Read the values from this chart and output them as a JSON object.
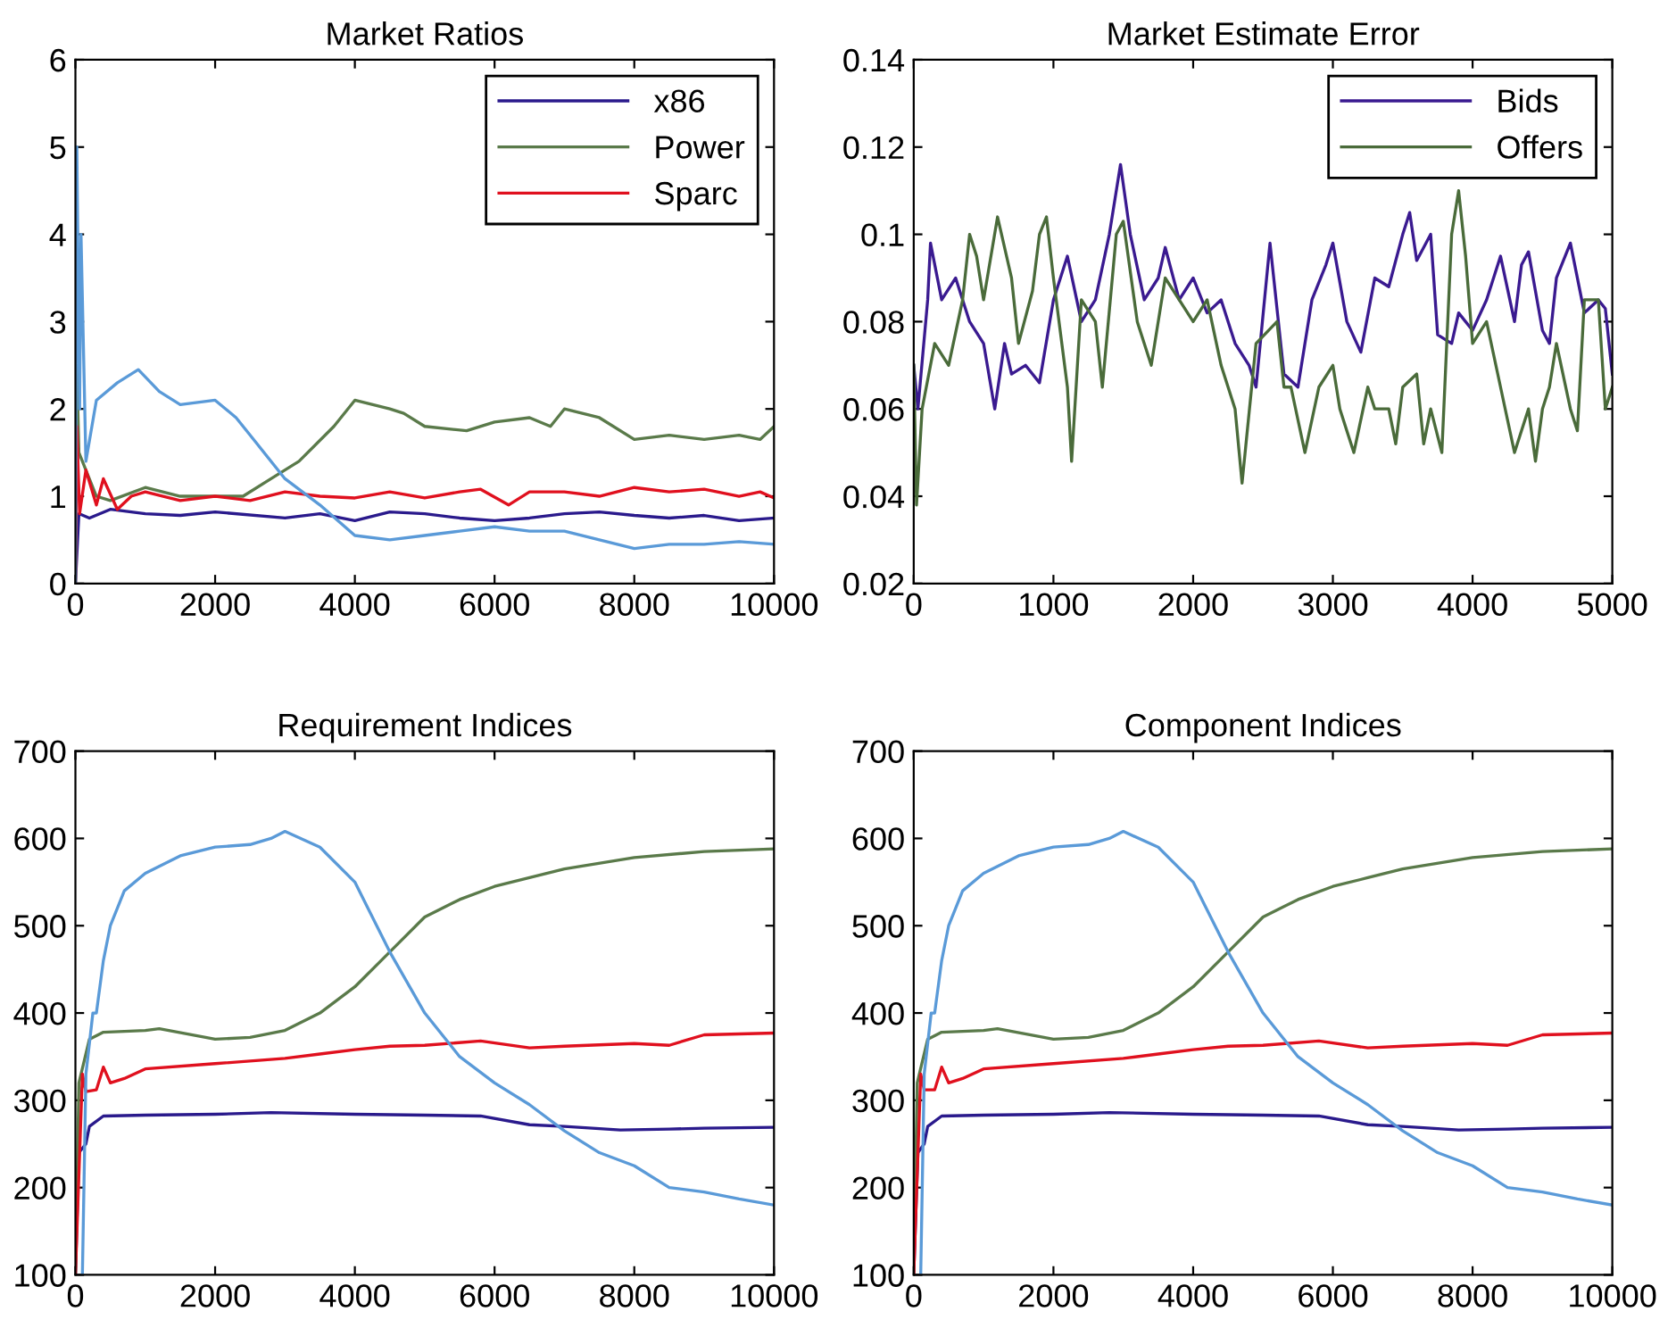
{
  "chart_data": [
    {
      "type": "line",
      "title": "Market Ratios",
      "xlim": [
        0,
        10000
      ],
      "ylim": [
        0,
        6
      ],
      "xticks": [
        0,
        2000,
        4000,
        6000,
        8000,
        10000
      ],
      "yticks": [
        0,
        1,
        2,
        3,
        4,
        5,
        6
      ],
      "grid": false,
      "legend": "top right",
      "marker": "none",
      "line_style": "solid",
      "series": [
        {
          "name": "x86",
          "color": "#2a1a8c",
          "x": [
            0,
            50,
            200,
            500,
            1000,
            1500,
            2000,
            3000,
            3500,
            4000,
            4500,
            5000,
            5500,
            6000,
            6500,
            7000,
            7500,
            8000,
            8500,
            9000,
            9500,
            10000
          ],
          "values": [
            0,
            0.8,
            0.75,
            0.85,
            0.8,
            0.78,
            0.82,
            0.75,
            0.8,
            0.72,
            0.82,
            0.8,
            0.75,
            0.72,
            0.75,
            0.8,
            0.82,
            0.78,
            0.75,
            0.78,
            0.72,
            0.75
          ]
        },
        {
          "name": "Power",
          "color": "#5a7a4a",
          "x": [
            0,
            20,
            50,
            300,
            500,
            1000,
            1500,
            2000,
            2400,
            2800,
            3200,
            3700,
            4000,
            4500,
            4700,
            5000,
            5600,
            6000,
            6500,
            6800,
            7000,
            7500,
            8000,
            8500,
            9000,
            9500,
            9800,
            10000
          ],
          "values": [
            0,
            2.5,
            1.5,
            1.0,
            0.95,
            1.1,
            1.0,
            1.0,
            1.0,
            1.2,
            1.4,
            1.8,
            2.1,
            2.0,
            1.95,
            1.8,
            1.75,
            1.85,
            1.9,
            1.8,
            2.0,
            1.9,
            1.65,
            1.7,
            1.65,
            1.7,
            1.65,
            1.8
          ]
        },
        {
          "name": "Sparc",
          "color": "#e0101e",
          "x": [
            0,
            20,
            60,
            150,
            300,
            400,
            600,
            800,
            1000,
            1500,
            2000,
            2500,
            3000,
            3500,
            4000,
            4500,
            5000,
            5500,
            5800,
            6200,
            6500,
            7000,
            7500,
            8000,
            8500,
            9000,
            9500,
            9800,
            10000
          ],
          "values": [
            0,
            1.8,
            0.8,
            1.3,
            0.9,
            1.2,
            0.85,
            1.0,
            1.05,
            0.95,
            1.0,
            0.95,
            1.05,
            1.0,
            0.98,
            1.05,
            0.98,
            1.05,
            1.08,
            0.9,
            1.05,
            1.05,
            1.0,
            1.1,
            1.05,
            1.08,
            1.0,
            1.05,
            0.98
          ]
        },
        {
          "color": "#5a9ad8",
          "x": [
            0,
            20,
            60,
            80,
            150,
            300,
            600,
            900,
            1200,
            1500,
            2000,
            2300,
            2600,
            3000,
            3500,
            4000,
            4500,
            5000,
            5500,
            6000,
            6500,
            7000,
            7500,
            8000,
            8500,
            9000,
            9500,
            10000
          ],
          "values": [
            0,
            5,
            2,
            4,
            1.4,
            2.1,
            2.3,
            2.45,
            2.2,
            2.05,
            2.1,
            1.9,
            1.6,
            1.2,
            0.9,
            0.55,
            0.5,
            0.55,
            0.6,
            0.65,
            0.6,
            0.6,
            0.5,
            0.4,
            0.45,
            0.45,
            0.48,
            0.45
          ]
        }
      ]
    },
    {
      "type": "line",
      "title": "Market Estimate Error",
      "xlim": [
        0,
        5000
      ],
      "ylim": [
        0.02,
        0.14
      ],
      "xticks": [
        0,
        1000,
        2000,
        3000,
        4000,
        5000
      ],
      "yticks": [
        0.02,
        0.04,
        0.06,
        0.08,
        0.1,
        0.12,
        0.14
      ],
      "grid": false,
      "legend": "top right",
      "marker": "none",
      "line_style": "solid",
      "series": [
        {
          "name": "Bids",
          "color": "#3a1a90",
          "x": [
            0,
            30,
            100,
            120,
            200,
            300,
            400,
            500,
            580,
            650,
            700,
            800,
            900,
            1000,
            1100,
            1200,
            1300,
            1400,
            1480,
            1550,
            1650,
            1750,
            1800,
            1900,
            2000,
            2100,
            2200,
            2300,
            2400,
            2450,
            2550,
            2650,
            2750,
            2850,
            2950,
            3000,
            3100,
            3200,
            3300,
            3400,
            3500,
            3550,
            3600,
            3700,
            3750,
            3850,
            3900,
            4000,
            4100,
            4200,
            4300,
            4350,
            4400,
            4500,
            4550,
            4600,
            4700,
            4800,
            4900,
            4950,
            5000
          ],
          "values": [
            0.07,
            0.06,
            0.085,
            0.098,
            0.085,
            0.09,
            0.08,
            0.075,
            0.06,
            0.075,
            0.068,
            0.07,
            0.066,
            0.085,
            0.095,
            0.08,
            0.085,
            0.1,
            0.116,
            0.1,
            0.085,
            0.09,
            0.097,
            0.085,
            0.09,
            0.082,
            0.085,
            0.075,
            0.07,
            0.065,
            0.098,
            0.068,
            0.065,
            0.085,
            0.093,
            0.098,
            0.08,
            0.073,
            0.09,
            0.088,
            0.1,
            0.105,
            0.094,
            0.1,
            0.077,
            0.075,
            0.082,
            0.078,
            0.085,
            0.095,
            0.08,
            0.093,
            0.096,
            0.078,
            0.075,
            0.09,
            0.098,
            0.082,
            0.085,
            0.083,
            0.068
          ]
        },
        {
          "name": "Offers",
          "color": "#4a6b3a",
          "x": [
            0,
            20,
            60,
            150,
            250,
            350,
            400,
            450,
            500,
            600,
            700,
            750,
            850,
            900,
            950,
            1000,
            1100,
            1130,
            1200,
            1300,
            1350,
            1450,
            1500,
            1600,
            1700,
            1800,
            1900,
            2000,
            2100,
            2200,
            2300,
            2350,
            2450,
            2600,
            2650,
            2700,
            2800,
            2900,
            3000,
            3050,
            3100,
            3150,
            3250,
            3300,
            3400,
            3450,
            3500,
            3600,
            3650,
            3700,
            3780,
            3850,
            3900,
            3950,
            4000,
            4100,
            4200,
            4300,
            4400,
            4450,
            4500,
            4550,
            4600,
            4700,
            4750,
            4800,
            4900,
            4950,
            5000
          ],
          "values": [
            0.07,
            0.038,
            0.06,
            0.075,
            0.07,
            0.085,
            0.1,
            0.095,
            0.085,
            0.104,
            0.09,
            0.075,
            0.087,
            0.1,
            0.104,
            0.09,
            0.065,
            0.048,
            0.085,
            0.08,
            0.065,
            0.1,
            0.103,
            0.08,
            0.07,
            0.09,
            0.085,
            0.08,
            0.085,
            0.07,
            0.06,
            0.043,
            0.075,
            0.08,
            0.065,
            0.065,
            0.05,
            0.065,
            0.07,
            0.06,
            0.055,
            0.05,
            0.065,
            0.06,
            0.06,
            0.052,
            0.065,
            0.068,
            0.052,
            0.06,
            0.05,
            0.1,
            0.11,
            0.095,
            0.075,
            0.08,
            0.065,
            0.05,
            0.06,
            0.048,
            0.06,
            0.065,
            0.075,
            0.06,
            0.055,
            0.085,
            0.085,
            0.06,
            0.065
          ]
        }
      ]
    },
    {
      "type": "line",
      "title": "Requirement Indices",
      "xlim": [
        0,
        10000
      ],
      "ylim": [
        100,
        700
      ],
      "xticks": [
        0,
        2000,
        4000,
        6000,
        8000,
        10000
      ],
      "yticks": [
        100,
        200,
        300,
        400,
        500,
        600,
        700
      ],
      "grid": false,
      "marker": "none",
      "line_style": "solid",
      "series": [
        {
          "color": "#2a1a8c",
          "x": [
            0,
            50,
            150,
            200,
            400,
            1000,
            2000,
            2800,
            4000,
            5000,
            5800,
            6500,
            7000,
            7800,
            8500,
            9000,
            10000
          ],
          "values": [
            100,
            240,
            250,
            270,
            282,
            283,
            284,
            286,
            284,
            283,
            282,
            272,
            270,
            266,
            267,
            268,
            269
          ]
        },
        {
          "color": "#5a7a4a",
          "x": [
            0,
            50,
            200,
            400,
            1000,
            1200,
            2000,
            2500,
            3000,
            3500,
            4000,
            4500,
            5000,
            5500,
            6000,
            6500,
            7000,
            8000,
            9000,
            10000
          ],
          "values": [
            100,
            320,
            370,
            378,
            380,
            382,
            370,
            372,
            380,
            400,
            430,
            470,
            510,
            530,
            545,
            555,
            565,
            578,
            585,
            588
          ]
        },
        {
          "color": "#e0101e",
          "x": [
            0,
            100,
            150,
            300,
            400,
            500,
            700,
            1000,
            2000,
            3000,
            3500,
            4000,
            4500,
            5000,
            5800,
            6500,
            7000,
            8000,
            8500,
            9000,
            10000
          ],
          "values": [
            100,
            330,
            310,
            312,
            338,
            320,
            325,
            336,
            342,
            348,
            353,
            358,
            362,
            363,
            368,
            360,
            362,
            365,
            363,
            375,
            377
          ]
        },
        {
          "color": "#5a9ad8",
          "x": [
            100,
            150,
            250,
            300,
            400,
            500,
            700,
            1000,
            1500,
            2000,
            2500,
            2800,
            3000,
            3500,
            4000,
            4500,
            5000,
            5500,
            6000,
            6500,
            7000,
            7500,
            8000,
            8500,
            9000,
            9500,
            10000
          ],
          "values": [
            100,
            330,
            400,
            400,
            460,
            500,
            540,
            560,
            580,
            590,
            593,
            600,
            608,
            590,
            550,
            470,
            400,
            350,
            320,
            295,
            265,
            240,
            225,
            200,
            195,
            187,
            180
          ]
        }
      ]
    },
    {
      "type": "line",
      "title": "Component Indices",
      "xlim": [
        0,
        10000
      ],
      "ylim": [
        100,
        700
      ],
      "xticks": [
        0,
        2000,
        4000,
        6000,
        8000,
        10000
      ],
      "yticks": [
        100,
        200,
        300,
        400,
        500,
        600,
        700
      ],
      "grid": false,
      "marker": "none",
      "line_style": "solid",
      "series": [
        {
          "color": "#2a1a8c",
          "x": [
            0,
            60,
            150,
            200,
            400,
            1000,
            2000,
            2800,
            4000,
            5000,
            5800,
            6500,
            7000,
            7800,
            8500,
            9000,
            10000
          ],
          "values": [
            100,
            240,
            250,
            270,
            282,
            283,
            284,
            286,
            284,
            283,
            282,
            272,
            270,
            266,
            267,
            268,
            269
          ]
        },
        {
          "color": "#5a7a4a",
          "x": [
            0,
            50,
            200,
            400,
            1000,
            1200,
            2000,
            2500,
            3000,
            3500,
            4000,
            4500,
            5000,
            5500,
            6000,
            6500,
            7000,
            8000,
            9000,
            10000
          ],
          "values": [
            100,
            320,
            370,
            378,
            380,
            382,
            370,
            372,
            380,
            400,
            430,
            470,
            510,
            530,
            545,
            555,
            565,
            578,
            585,
            588
          ]
        },
        {
          "color": "#e0101e",
          "x": [
            0,
            100,
            150,
            300,
            400,
            500,
            700,
            1000,
            2000,
            3000,
            3500,
            4000,
            4500,
            5000,
            5800,
            6500,
            7000,
            8000,
            8500,
            9000,
            10000
          ],
          "values": [
            100,
            330,
            312,
            312,
            338,
            320,
            325,
            336,
            342,
            348,
            353,
            358,
            362,
            363,
            368,
            360,
            362,
            365,
            363,
            375,
            377
          ]
        },
        {
          "color": "#5a9ad8",
          "x": [
            100,
            150,
            250,
            300,
            400,
            500,
            700,
            1000,
            1500,
            2000,
            2500,
            2800,
            3000,
            3500,
            4000,
            4500,
            5000,
            5500,
            6000,
            6500,
            7000,
            7500,
            8000,
            8500,
            9000,
            9500,
            10000
          ],
          "values": [
            100,
            330,
            400,
            400,
            460,
            500,
            540,
            560,
            580,
            590,
            593,
            600,
            608,
            590,
            550,
            470,
            400,
            350,
            320,
            295,
            265,
            240,
            225,
            200,
            195,
            187,
            180
          ]
        }
      ]
    }
  ]
}
